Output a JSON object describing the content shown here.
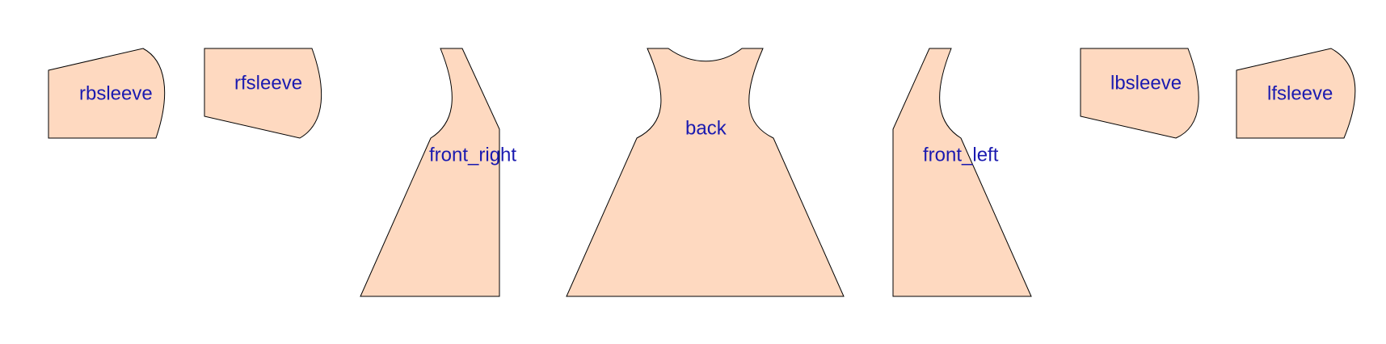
{
  "diagram": {
    "fill_color": "#fed9c0",
    "stroke_color": "#000000",
    "label_color": "#1a1ab0",
    "pieces": [
      {
        "id": "rbsleeve",
        "label": "rbsleeve"
      },
      {
        "id": "rfsleeve",
        "label": "rfsleeve"
      },
      {
        "id": "front_right",
        "label": "front_right"
      },
      {
        "id": "back",
        "label": "back"
      },
      {
        "id": "front_left",
        "label": "front_left"
      },
      {
        "id": "lbsleeve",
        "label": "lbsleeve"
      },
      {
        "id": "lfsleeve",
        "label": "lfsleeve"
      }
    ]
  }
}
